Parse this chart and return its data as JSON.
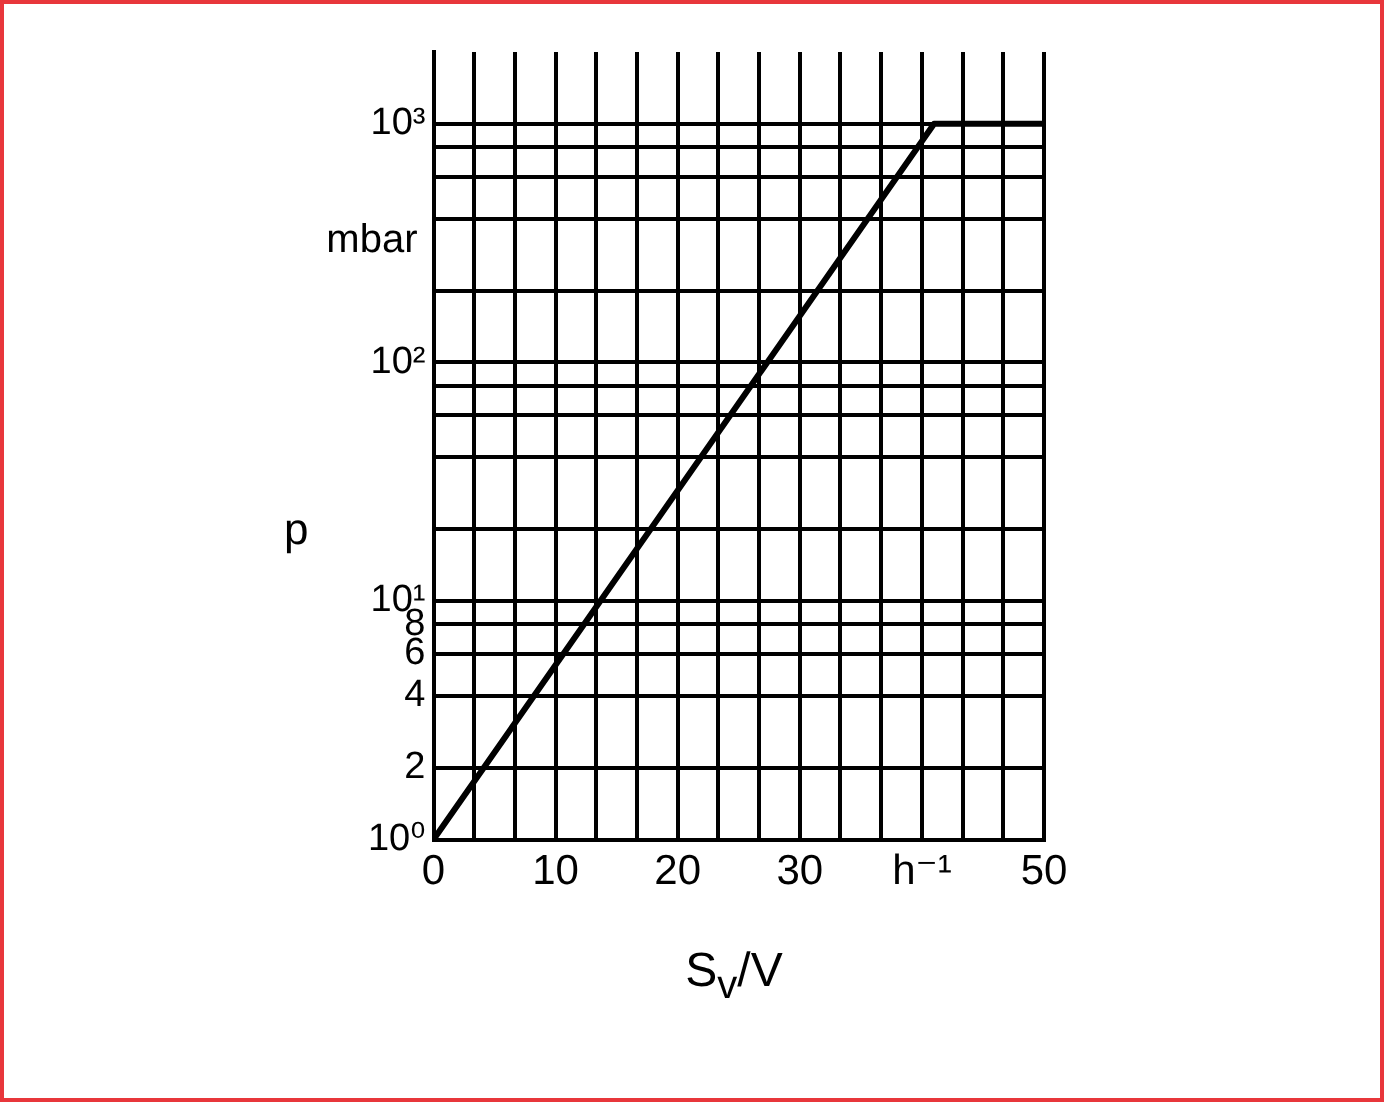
{
  "chart_data": {
    "type": "line",
    "xlabel": "S$_{v}$/V",
    "ylabel": "p",
    "annotations": [
      "mbar"
    ],
    "x": [
      0,
      41,
      50
    ],
    "series": [
      {
        "color": "#000000",
        "values": [
          1,
          1000,
          1000
        ]
      }
    ],
    "xlim": [
      0,
      50
    ],
    "xticks": [
      0,
      {
        "value": 3.333,
        "label": null
      },
      {
        "value": 6.667,
        "label": null
      },
      10,
      {
        "value": 13.333,
        "label": null
      },
      {
        "value": 16.667,
        "label": null
      },
      20,
      {
        "value": 23.333,
        "label": null
      },
      {
        "value": 26.667,
        "label": null
      },
      30,
      {
        "value": 33.333,
        "label": null
      },
      {
        "value": 36.667,
        "label": null
      },
      {
        "value": 40,
        "label": "h⁻¹"
      },
      {
        "value": 43.333,
        "label": null
      },
      {
        "value": 46.667,
        "label": null
      },
      50
    ],
    "ylim": [
      1,
      2000
    ],
    "log": true,
    "yticks": [
      {
        "value": 1,
        "label": "10⁰"
      },
      2,
      4,
      6,
      8,
      {
        "value": 10,
        "label": "10¹"
      },
      {
        "value": 20,
        "label": null
      },
      {
        "value": 40,
        "label": null
      },
      {
        "value": 60,
        "label": null
      },
      {
        "value": 80,
        "label": null
      },
      {
        "value": 100,
        "label": "10²"
      },
      {
        "value": 200,
        "label": null
      },
      {
        "value": 400,
        "label": null
      },
      {
        "value": 600,
        "label": null
      },
      {
        "value": 800,
        "label": null
      },
      {
        "value": 1000,
        "label": "10³"
      }
    ],
    "grid": true,
    "legend": false,
    "marker": "none",
    "line_style": "solid"
  }
}
